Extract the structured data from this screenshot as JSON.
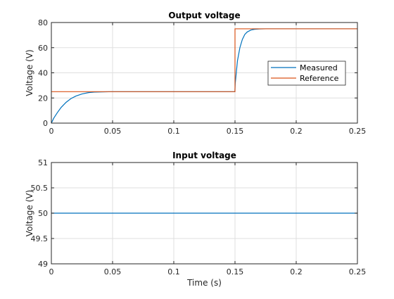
{
  "chart_data": [
    {
      "type": "line",
      "title": "Output voltage",
      "xlabel": "",
      "ylabel": "Voltage (V)",
      "xlim": [
        0,
        0.25
      ],
      "ylim": [
        0,
        80
      ],
      "xticks": [
        0,
        0.05,
        0.1,
        0.15,
        0.2,
        0.25
      ],
      "xtick_labels": [
        "0",
        "0.05",
        "0.1",
        "0.15",
        "0.2",
        "0.25"
      ],
      "yticks": [
        0,
        20,
        40,
        60,
        80
      ],
      "ytick_labels": [
        "0",
        "20",
        "40",
        "60",
        "80"
      ],
      "grid": true,
      "legend": "right",
      "series": [
        {
          "name": "Measured",
          "color": "#0072BD",
          "x": [
            0,
            0.002,
            0.005,
            0.008,
            0.012,
            0.016,
            0.02,
            0.025,
            0.03,
            0.035,
            0.05,
            0.1,
            0.1499,
            0.1502,
            0.152,
            0.154,
            0.156,
            0.158,
            0.16,
            0.163,
            0.166,
            0.17,
            0.175,
            0.2,
            0.25
          ],
          "y": [
            0,
            4,
            8.5,
            12.5,
            16.5,
            19.5,
            21.5,
            23.2,
            24.2,
            24.7,
            25,
            25,
            25,
            31.5,
            49.5,
            60,
            66.5,
            70.5,
            72.5,
            74,
            74.6,
            74.9,
            75,
            75,
            75
          ]
        },
        {
          "name": "Reference",
          "color": "#D95319",
          "x": [
            0,
            0.15,
            0.15,
            0.25
          ],
          "y": [
            25,
            25,
            75,
            75
          ]
        }
      ]
    },
    {
      "type": "line",
      "title": "Input voltage",
      "xlabel": "Time (s)",
      "ylabel": "Voltage (V)",
      "xlim": [
        0,
        0.25
      ],
      "ylim": [
        49,
        51
      ],
      "xticks": [
        0,
        0.05,
        0.1,
        0.15,
        0.2,
        0.25
      ],
      "xtick_labels": [
        "0",
        "0.05",
        "0.1",
        "0.15",
        "0.2",
        "0.25"
      ],
      "yticks": [
        49,
        49.5,
        50,
        50.5,
        51
      ],
      "ytick_labels": [
        "49",
        "49.5",
        "50",
        "50.5",
        "51"
      ],
      "grid": true,
      "series": [
        {
          "color": "#0072BD",
          "x": [
            0,
            0.25
          ],
          "y": [
            50,
            50
          ]
        }
      ]
    }
  ]
}
